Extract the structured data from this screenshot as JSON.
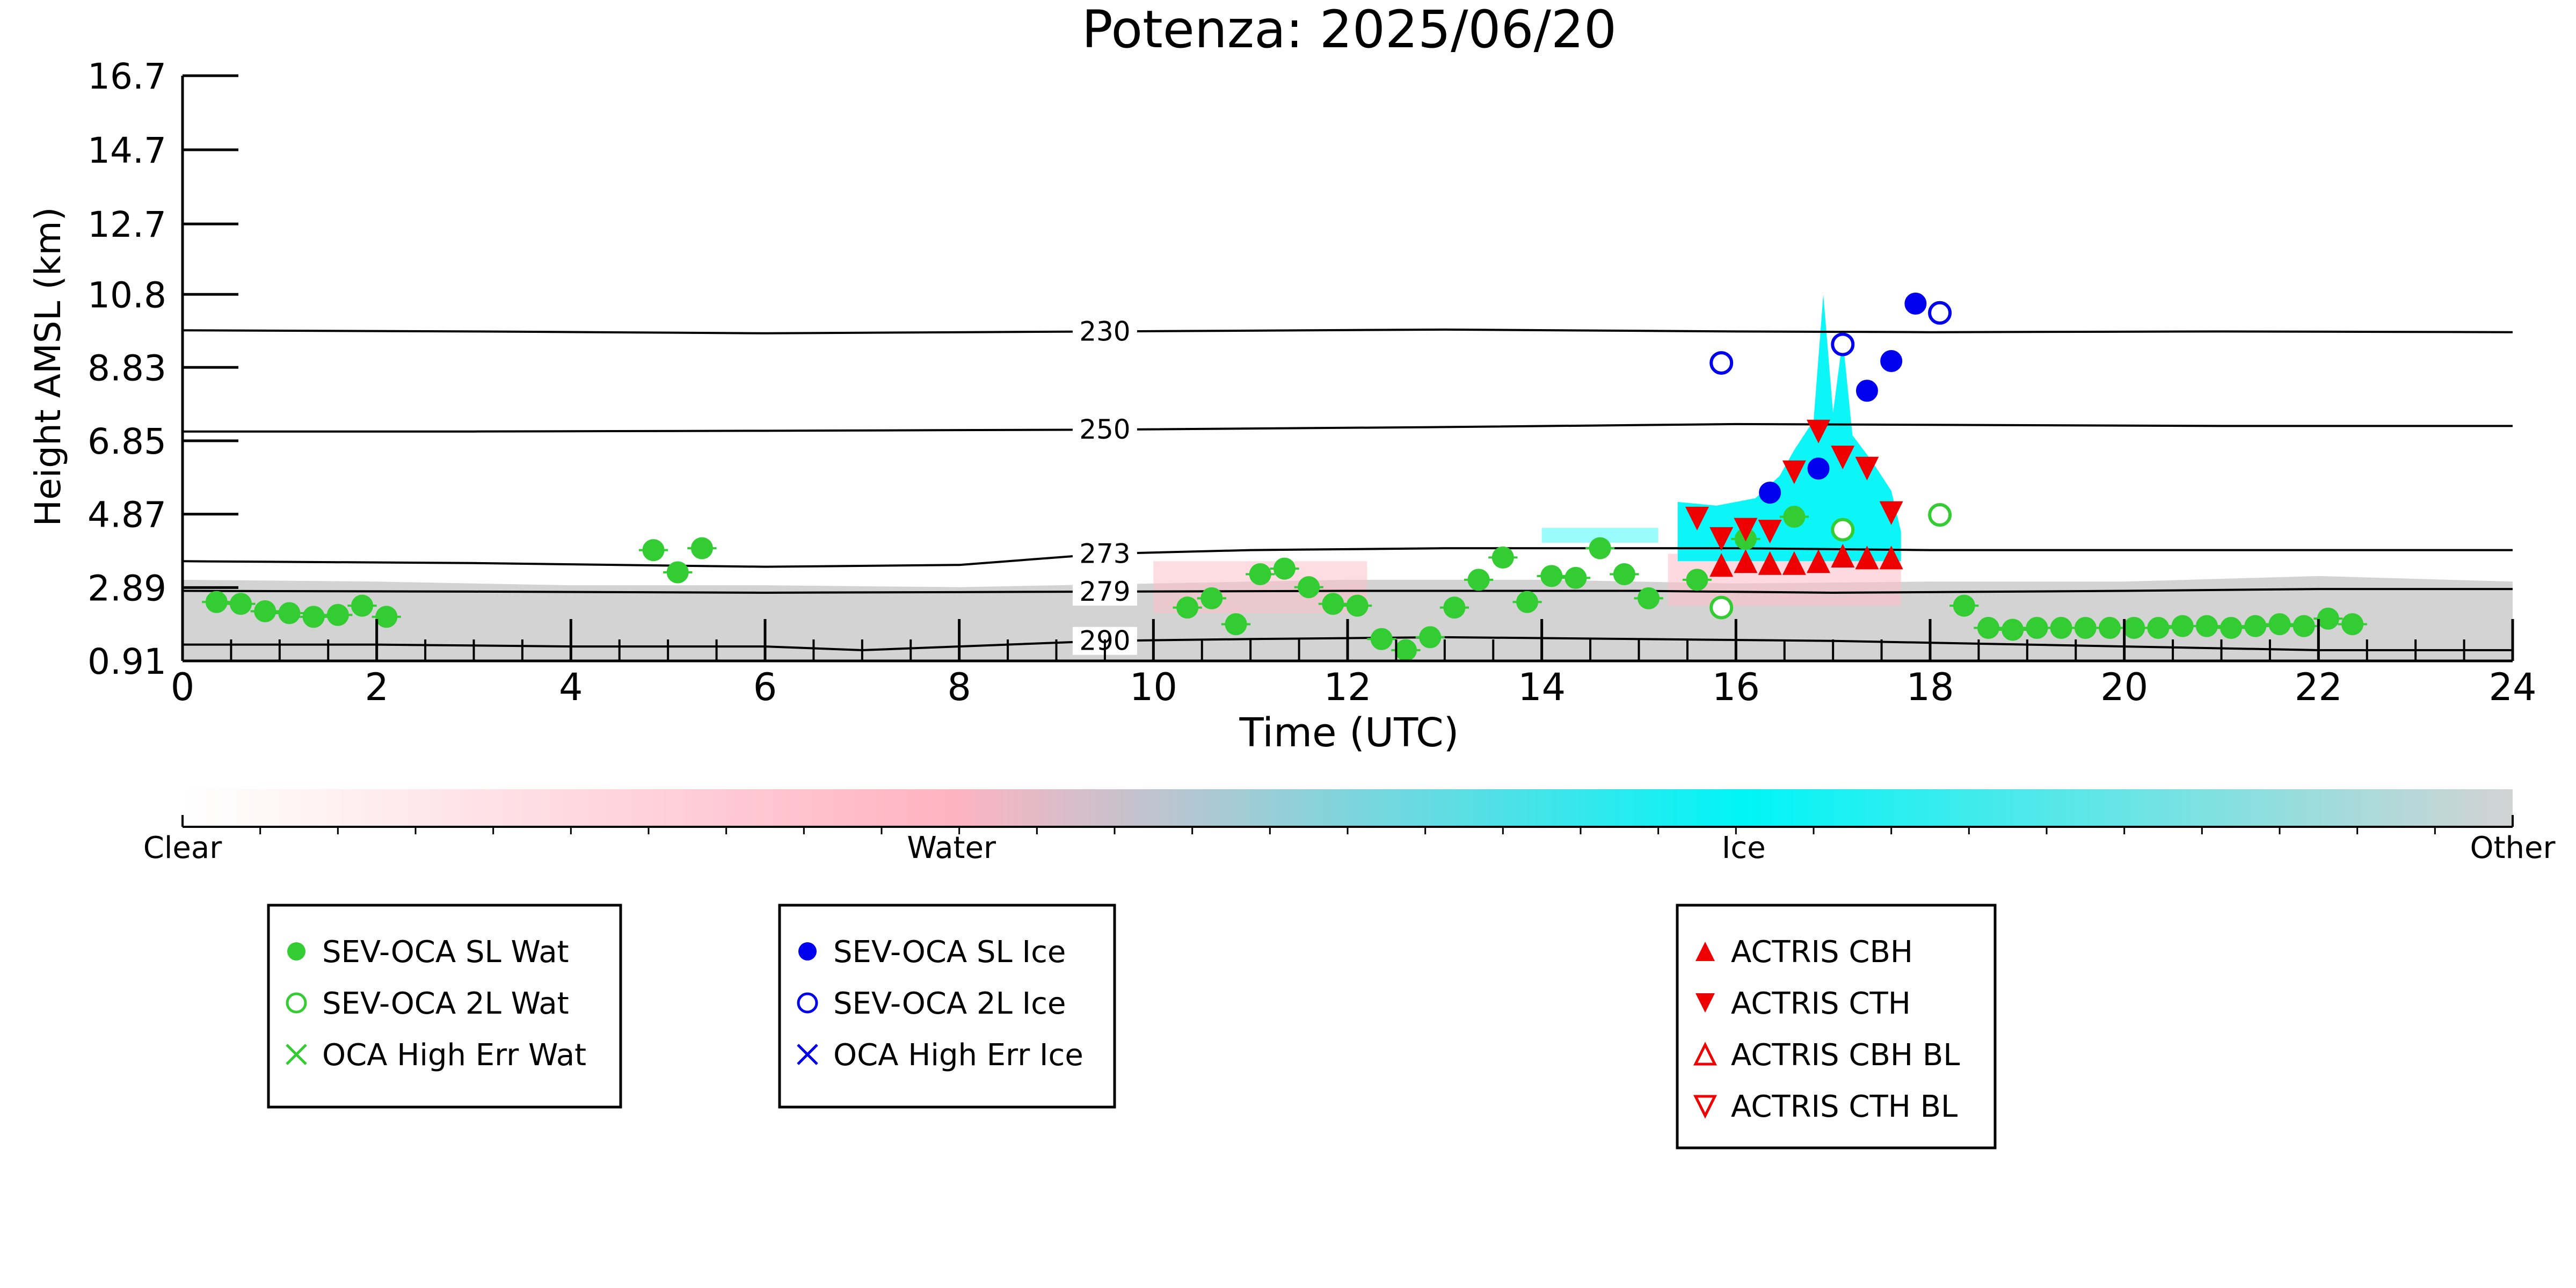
{
  "chart_data": {
    "type": "scatter",
    "title": "Potenza: 2025/06/20",
    "xlabel": "Time (UTC)",
    "ylabel": "Height AMSL (km)",
    "xlim": [
      0,
      24
    ],
    "ylim": [
      0.91,
      16.7
    ],
    "xticks": [
      0,
      2,
      4,
      6,
      8,
      10,
      12,
      14,
      16,
      18,
      20,
      22,
      24
    ],
    "yticks": [
      0.91,
      2.89,
      4.87,
      6.85,
      8.83,
      10.8,
      12.7,
      14.7,
      16.7
    ],
    "grid": false,
    "isotherms": [
      {
        "label": "230",
        "x": [
          0,
          3,
          6,
          9.5,
          13,
          16,
          18,
          21,
          24
        ],
        "y": [
          9.83,
          9.8,
          9.75,
          9.8,
          9.85,
          9.8,
          9.78,
          9.8,
          9.78
        ]
      },
      {
        "label": "250",
        "x": [
          0,
          3,
          6,
          9.5,
          13,
          16,
          18,
          21,
          24
        ],
        "y": [
          7.1,
          7.1,
          7.12,
          7.15,
          7.22,
          7.3,
          7.28,
          7.25,
          7.25
        ]
      },
      {
        "label": "273",
        "x": [
          0,
          3,
          6,
          8,
          9.5,
          11,
          13,
          16,
          18,
          21,
          24
        ],
        "y": [
          3.6,
          3.55,
          3.45,
          3.5,
          3.8,
          3.9,
          3.95,
          3.95,
          3.9,
          3.9,
          3.9
        ]
      },
      {
        "label": "279",
        "x": [
          0,
          3,
          6,
          9.5,
          12,
          15,
          17,
          20,
          22,
          24
        ],
        "y": [
          2.8,
          2.78,
          2.75,
          2.78,
          2.8,
          2.8,
          2.75,
          2.8,
          2.85,
          2.85
        ]
      },
      {
        "label": "290",
        "x": [
          0,
          2,
          4,
          6,
          7,
          8,
          9.5,
          11,
          13,
          15,
          17,
          20,
          22,
          24
        ],
        "y": [
          1.35,
          1.35,
          1.3,
          1.3,
          1.2,
          1.3,
          1.45,
          1.5,
          1.55,
          1.5,
          1.45,
          1.3,
          1.2,
          1.2
        ]
      }
    ],
    "background_colorbar": {
      "labels": [
        "Clear",
        "Water",
        "Ice",
        "Other"
      ],
      "colors": [
        "#ffffff",
        "#ffb3c1",
        "#00f5f7",
        "#d3d3d3"
      ]
    },
    "legends": [
      {
        "entries": [
          {
            "label": "SEV-OCA SL Wat",
            "marker": "filled-circle",
            "color": "#33cc33"
          },
          {
            "label": "SEV-OCA 2L Wat",
            "marker": "open-circle",
            "color": "#33cc33"
          },
          {
            "label": "OCA High Err Wat",
            "marker": "x",
            "color": "#33cc33"
          }
        ]
      },
      {
        "entries": [
          {
            "label": "SEV-OCA SL Ice",
            "marker": "filled-circle",
            "color": "#0000ee"
          },
          {
            "label": "SEV-OCA 2L Ice",
            "marker": "open-circle",
            "color": "#0000ee"
          },
          {
            "label": "OCA High Err Ice",
            "marker": "x",
            "color": "#0000ee"
          }
        ]
      },
      {
        "entries": [
          {
            "label": "ACTRIS CBH",
            "marker": "triangle-up",
            "color": "#ee0000"
          },
          {
            "label": "ACTRIS CTH",
            "marker": "triangle-down",
            "color": "#ee0000"
          },
          {
            "label": "ACTRIS CBH BL",
            "marker": "open-triangle-up",
            "color": "#ee0000"
          },
          {
            "label": "ACTRIS CTH BL",
            "marker": "open-triangle-down",
            "color": "#ee0000"
          }
        ]
      }
    ],
    "series": [
      {
        "name": "SEV-OCA SL Wat",
        "marker": "filled-circle",
        "color": "#33cc33",
        "x": [
          0.35,
          0.6,
          0.85,
          1.1,
          1.35,
          1.6,
          1.85,
          2.1,
          4.85,
          5.1,
          5.35,
          10.35,
          10.6,
          10.85,
          11.1,
          11.35,
          11.6,
          11.85,
          12.1,
          12.35,
          12.6,
          12.85,
          13.1,
          13.35,
          13.6,
          13.85,
          14.1,
          14.35,
          14.6,
          14.85,
          15.1,
          15.6,
          16.1,
          16.6,
          18.35,
          18.6,
          18.85,
          19.1,
          19.35,
          19.6,
          19.85,
          20.1,
          20.35,
          20.6,
          20.85,
          21.1,
          21.35,
          21.6,
          21.85,
          22.1,
          22.35
        ],
        "y": [
          2.5,
          2.45,
          2.25,
          2.2,
          2.1,
          2.15,
          2.4,
          2.1,
          3.9,
          3.3,
          3.95,
          2.35,
          2.6,
          1.9,
          3.25,
          3.4,
          2.9,
          2.45,
          2.4,
          1.5,
          1.2,
          1.55,
          2.35,
          3.1,
          3.7,
          2.5,
          3.2,
          3.15,
          3.95,
          3.25,
          2.6,
          3.1,
          4.2,
          4.8,
          2.4,
          1.8,
          1.75,
          1.8,
          1.8,
          1.8,
          1.8,
          1.8,
          1.8,
          1.85,
          1.85,
          1.8,
          1.85,
          1.9,
          1.85,
          2.05,
          1.9
        ],
        "xerr": 0.15
      },
      {
        "name": "SEV-OCA 2L Wat",
        "marker": "open-circle",
        "color": "#33cc33",
        "x": [
          15.85,
          17.1,
          18.1
        ],
        "y": [
          2.35,
          4.45,
          4.85
        ]
      },
      {
        "name": "SEV-OCA SL Ice",
        "marker": "filled-circle",
        "color": "#0000ee",
        "x": [
          16.35,
          16.85,
          17.35,
          17.6,
          17.85
        ],
        "y": [
          5.45,
          6.1,
          8.2,
          9.0,
          10.55
        ]
      },
      {
        "name": "SEV-OCA 2L Ice",
        "marker": "open-circle",
        "color": "#0000ee",
        "x": [
          15.85,
          17.1,
          18.1
        ],
        "y": [
          8.95,
          9.45,
          10.3
        ]
      },
      {
        "name": "ACTRIS CBH",
        "marker": "triangle-up",
        "color": "#ee0000",
        "x": [
          15.85,
          16.1,
          16.35,
          16.6,
          16.85,
          17.1,
          17.35,
          17.6
        ],
        "y": [
          3.5,
          3.6,
          3.55,
          3.55,
          3.6,
          3.75,
          3.7,
          3.7
        ]
      },
      {
        "name": "ACTRIS CTH",
        "marker": "triangle-down",
        "color": "#ee0000",
        "x": [
          15.6,
          15.85,
          16.1,
          16.35,
          16.6,
          16.85,
          17.1,
          17.35,
          17.6
        ],
        "y": [
          4.75,
          4.2,
          4.45,
          4.4,
          6.0,
          7.1,
          6.4,
          6.1,
          4.9
        ]
      }
    ]
  }
}
